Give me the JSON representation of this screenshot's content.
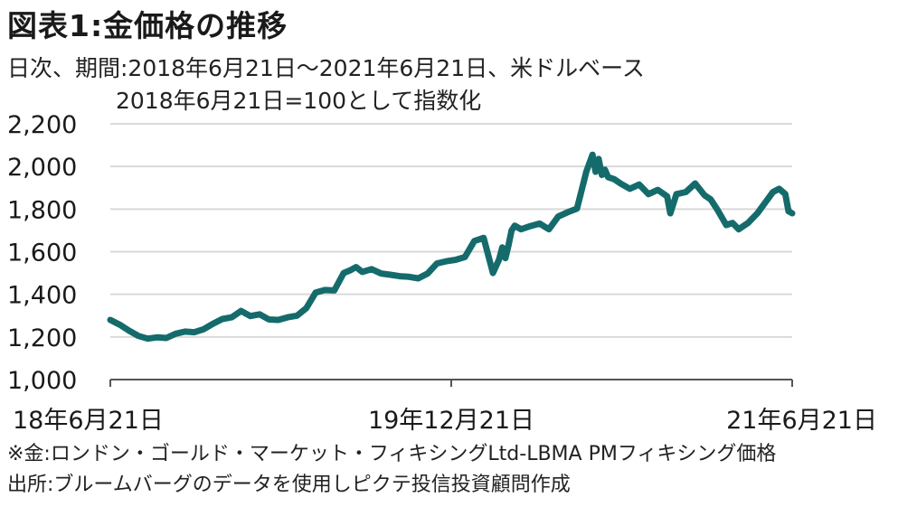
{
  "title": "図表1:金価格の推移",
  "subtitle": "日次、期間:2018年6月21日〜2021年6月21日、米ドルベース",
  "subtitle2": "2018年6月21日=100として指数化",
  "footnote": "※金:ロンドン・ゴールド・マーケット・フィキシングLtd-LBMA PMフィキシング価格",
  "source": "出所:ブルームバーグのデータを使用しピクテ投信投資顧問作成",
  "colors": {
    "line": "#156b6b",
    "grid": "#d9d9d9",
    "axis": "#555555"
  },
  "chart_data": {
    "type": "line",
    "title": "",
    "xlabel": "",
    "ylabel": "",
    "ylim": [
      1000,
      2200
    ],
    "yticks": [
      1000,
      1200,
      1400,
      1600,
      1800,
      2000,
      2200
    ],
    "ytick_labels": [
      "1,000",
      "1,200",
      "1,400",
      "1,600",
      "1,800",
      "2,000",
      "2,200"
    ],
    "xlim": [
      0,
      1096
    ],
    "xticks": [
      {
        "x": 0,
        "label": "18年6月21日"
      },
      {
        "x": 548,
        "label": "19年12月21日"
      },
      {
        "x": 1096,
        "label": "21年6月21日"
      }
    ],
    "grid": true,
    "series": [
      {
        "x": [
          0,
          15,
          30,
          45,
          60,
          75,
          90,
          105,
          120,
          135,
          150,
          165,
          180,
          195,
          210,
          225,
          240,
          255,
          270,
          285,
          300,
          315,
          330,
          345,
          360,
          375,
          385,
          395,
          405,
          420,
          435,
          450,
          465,
          480,
          495,
          510,
          525,
          540,
          555,
          570,
          585,
          600,
          615,
          625,
          630,
          635,
          640,
          645,
          650,
          660,
          675,
          690,
          705,
          720,
          735,
          750,
          765,
          775,
          780,
          785,
          790,
          795,
          800,
          810,
          820,
          835,
          850,
          865,
          880,
          895,
          900,
          910,
          925,
          940,
          955,
          965,
          975,
          990,
          1000,
          1010,
          1025,
          1040,
          1055,
          1065,
          1075,
          1085,
          1090,
          1096
        ],
        "values": [
          1280,
          1258,
          1230,
          1205,
          1192,
          1198,
          1195,
          1215,
          1225,
          1222,
          1236,
          1262,
          1284,
          1292,
          1322,
          1298,
          1306,
          1282,
          1280,
          1292,
          1300,
          1335,
          1408,
          1420,
          1418,
          1500,
          1512,
          1528,
          1505,
          1518,
          1498,
          1492,
          1485,
          1482,
          1475,
          1498,
          1545,
          1555,
          1562,
          1575,
          1650,
          1665,
          1500,
          1565,
          1620,
          1570,
          1630,
          1700,
          1722,
          1705,
          1720,
          1732,
          1705,
          1765,
          1785,
          1802,
          1975,
          2055,
          1975,
          2035,
          1960,
          1985,
          1950,
          1940,
          1920,
          1895,
          1915,
          1870,
          1890,
          1860,
          1780,
          1870,
          1880,
          1920,
          1865,
          1845,
          1800,
          1725,
          1735,
          1705,
          1735,
          1780,
          1840,
          1880,
          1895,
          1870,
          1790,
          1780
        ]
      }
    ]
  }
}
